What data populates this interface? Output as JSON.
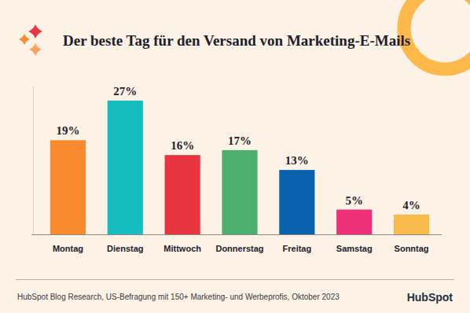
{
  "chart_data": {
    "type": "bar",
    "title": "Der beste Tag für den Versand von Marketing-E-Mails",
    "categories": [
      "Montag",
      "Dienstag",
      "Mittwoch",
      "Donnerstag",
      "Freitag",
      "Samstag",
      "Sonntag"
    ],
    "values": [
      19,
      27,
      16,
      17,
      13,
      5,
      4
    ],
    "value_labels": [
      "19%",
      "27%",
      "16%",
      "17%",
      "13%",
      "5%",
      "4%"
    ],
    "colors": [
      "#f98a2e",
      "#14bdbf",
      "#e8343f",
      "#4caf6e",
      "#0a62ae",
      "#ef2f77",
      "#fbbb4c"
    ],
    "ylim": [
      0,
      30
    ],
    "data_labels": true,
    "tick_labels": "x",
    "annotations": [
      "HubSpot Blog Research, US-Befragung mit 150+ Marketing- und Werbeprofis, Oktober 2023",
      "HubSpot"
    ]
  }
}
